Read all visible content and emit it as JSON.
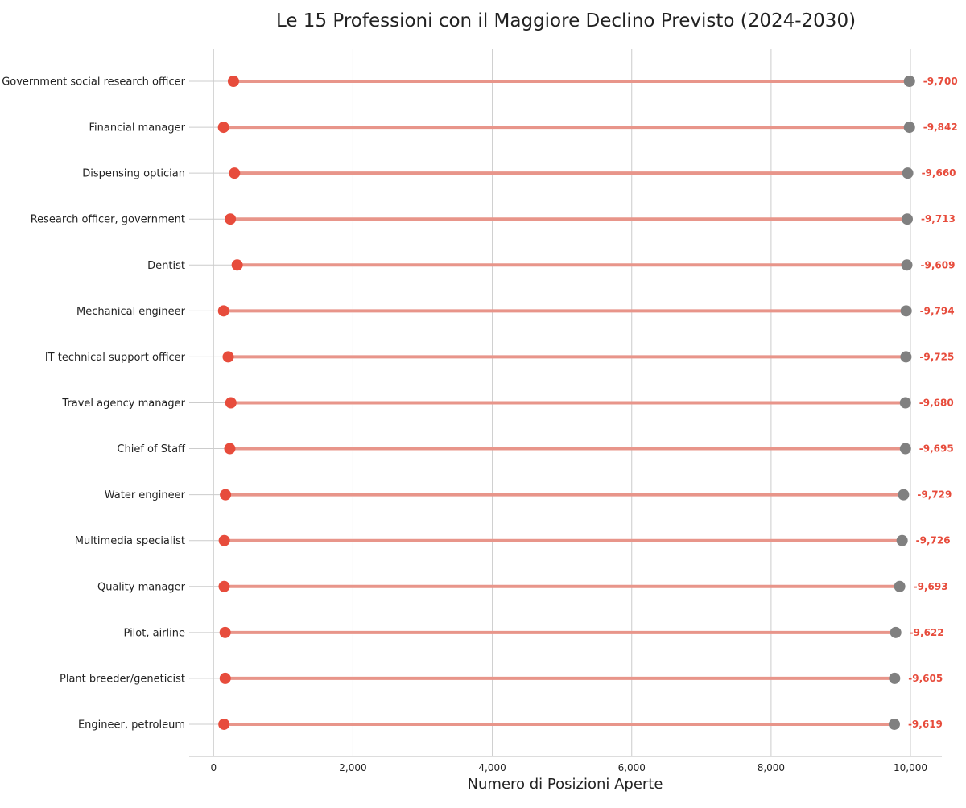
{
  "chart_data": {
    "type": "dumbbell",
    "title": "Le 15 Professioni con il Maggiore Declino Previsto (2024-2030)",
    "xlabel": "Numero di Posizioni Aperte",
    "ylabel": "",
    "xlim": [
      -350,
      10450
    ],
    "xticks": [
      0,
      2000,
      4000,
      6000,
      8000,
      10000
    ],
    "xtick_labels": [
      "0",
      "2,000",
      "4,000",
      "6,000",
      "8,000",
      "10,000"
    ],
    "grid": "vertical",
    "categories": [
      "Government social research officer",
      "Financial manager",
      "Dispensing optician",
      "Research officer, government",
      "Dentist",
      "Mechanical engineer",
      "IT technical support officer",
      "Travel agency manager",
      "Chief of Staff",
      "Water engineer",
      "Multimedia specialist",
      "Quality manager",
      "Pilot, airline",
      "Plant breeder/geneticist",
      "Engineer, petroleum"
    ],
    "start_values": [
      9985,
      9985,
      9960,
      9953,
      9948,
      9938,
      9935,
      9928,
      9928,
      9900,
      9880,
      9845,
      9788,
      9772,
      9768
    ],
    "end_values": [
      285,
      143,
      300,
      240,
      339,
      144,
      210,
      248,
      233,
      171,
      154,
      152,
      166,
      167,
      149
    ],
    "change_labels": [
      "-9,700",
      "-9,842",
      "-9,660",
      "-9,713",
      "-9,609",
      "-9,794",
      "-9,725",
      "-9,680",
      "-9,695",
      "-9,729",
      "-9,726",
      "-9,693",
      "-9,622",
      "-9,605",
      "-9,619"
    ],
    "colors": {
      "start_point": "#808080",
      "end_point": "#e74c3c",
      "connector": "#e8958a",
      "change_label": "#e74c3c",
      "grid": "#cccccc",
      "axis": "#bbbbbb"
    }
  }
}
